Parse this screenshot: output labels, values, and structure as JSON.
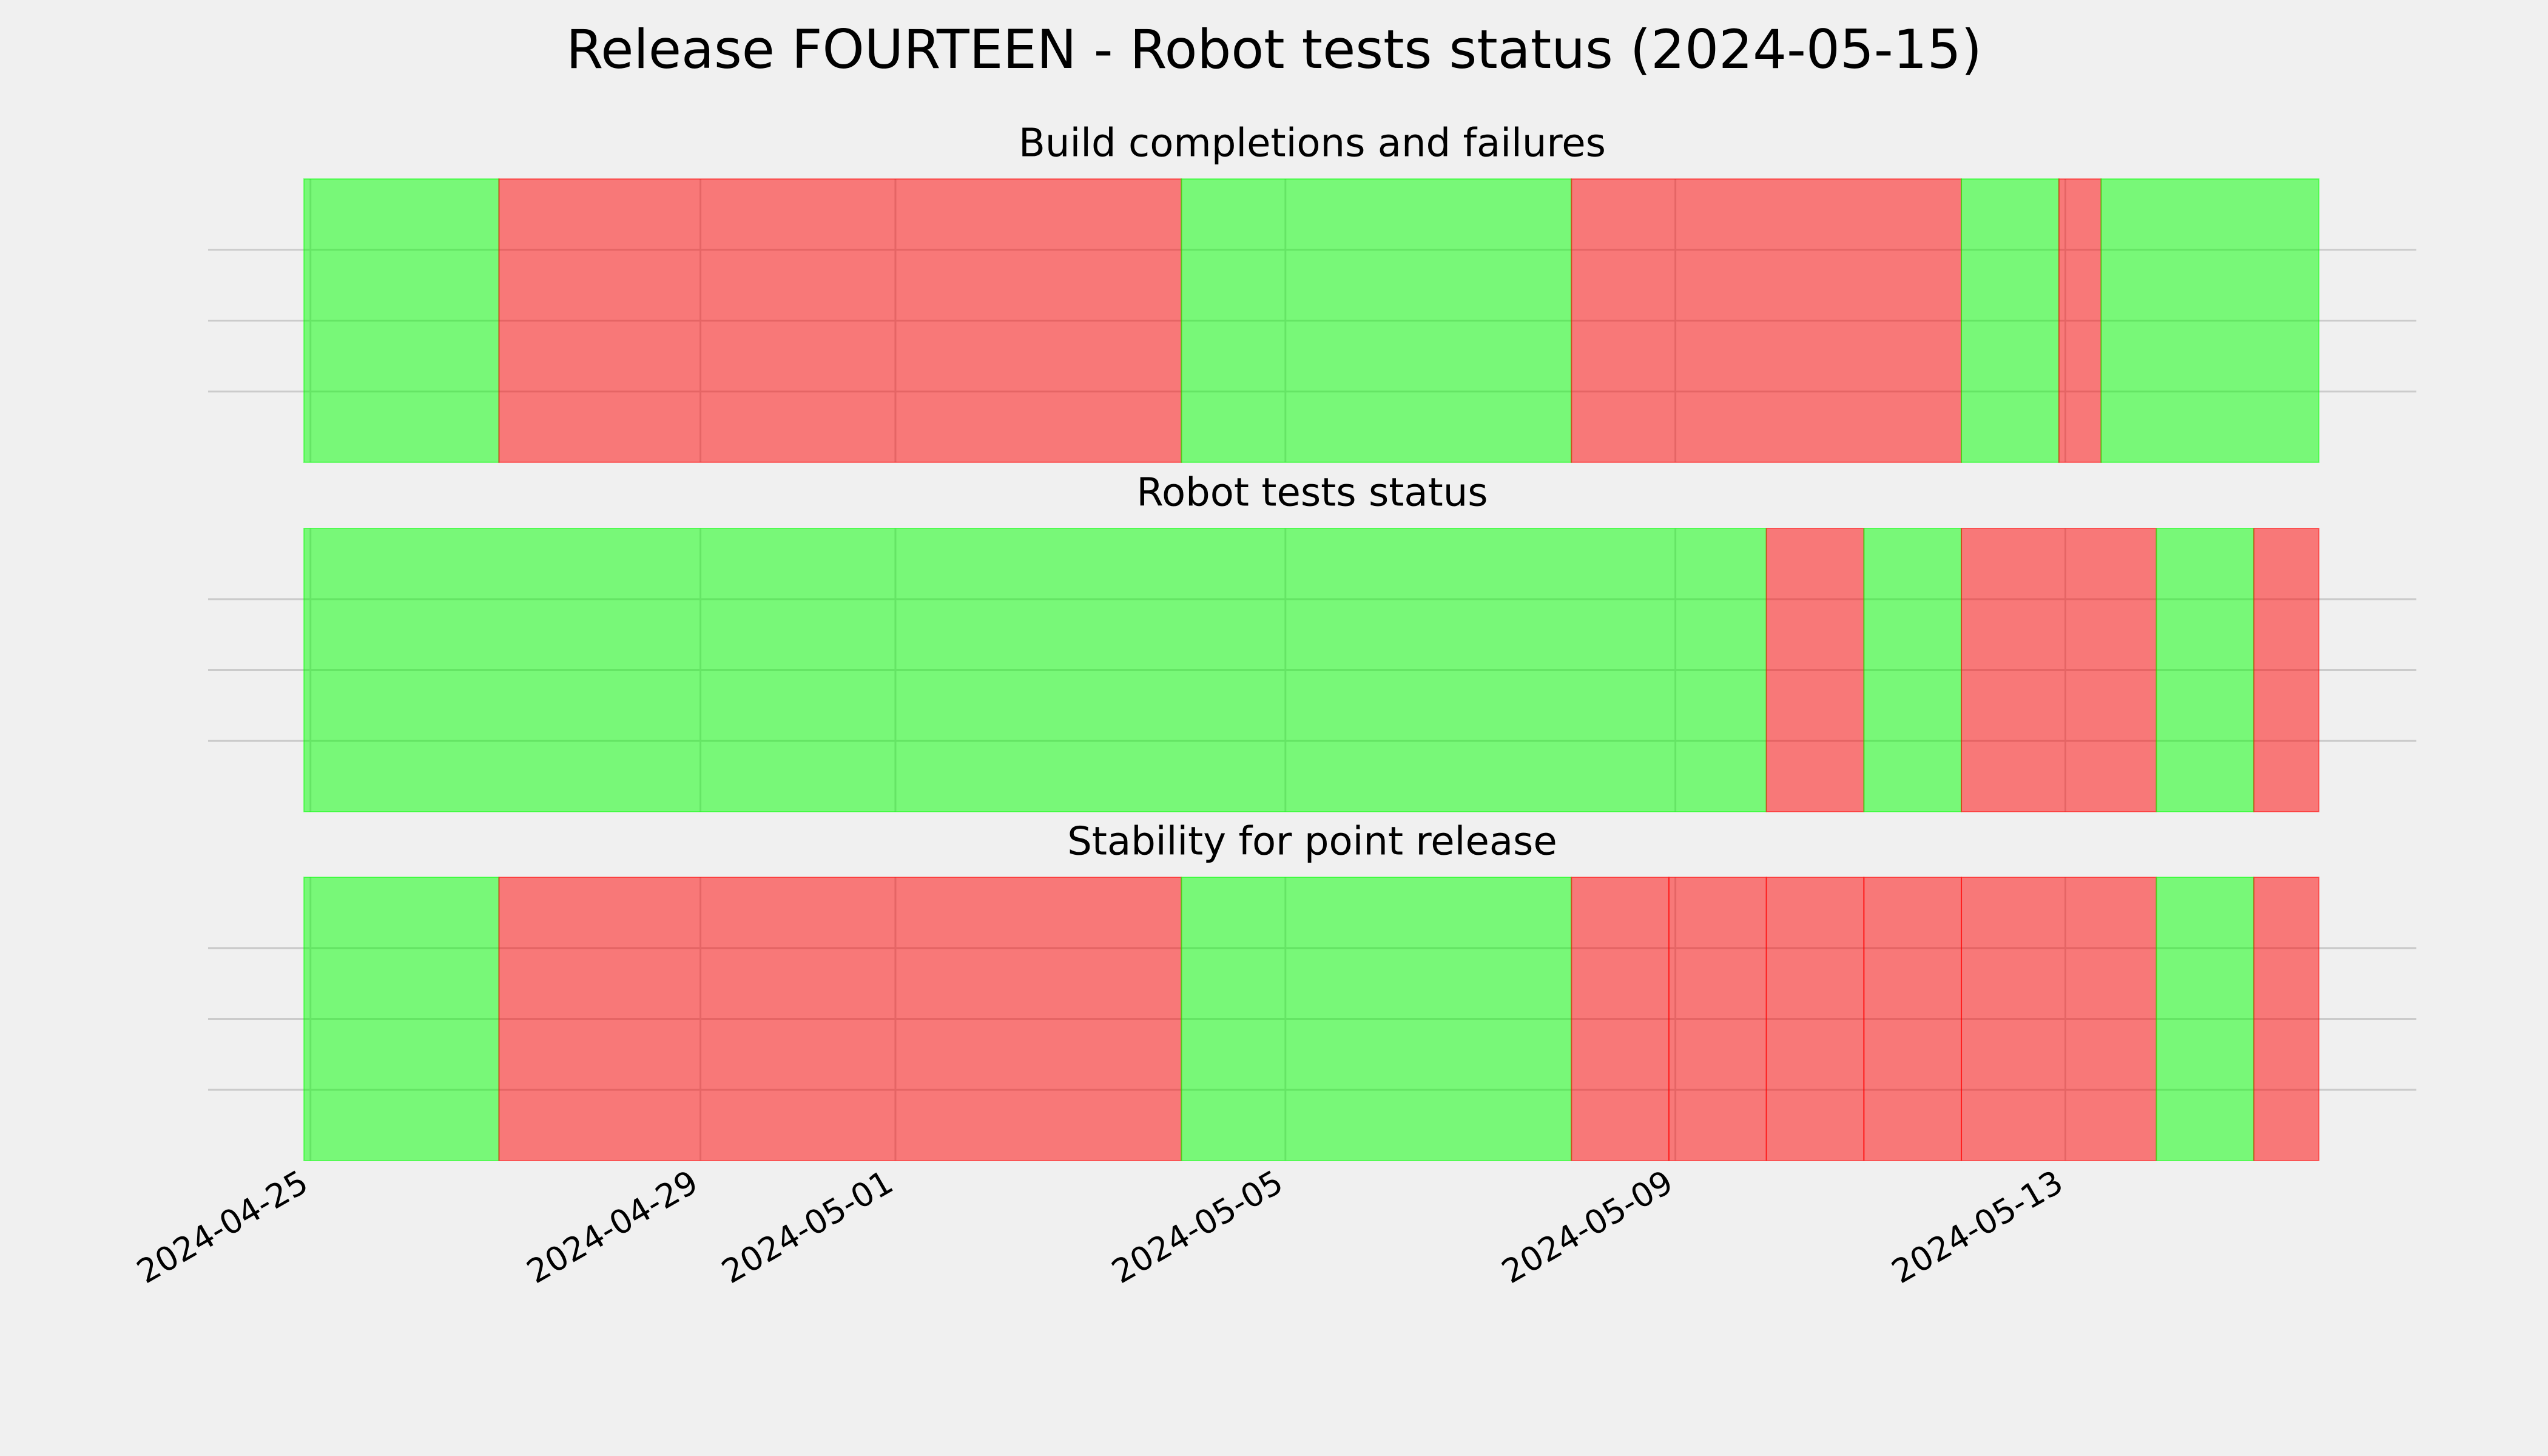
{
  "chart_data": {
    "type": "timeline",
    "title": "Release FOURTEEN - Robot tests status (2024-05-15)",
    "xlim": [
      "2024-04-23T22:48Z",
      "2024-05-16T14:24Z"
    ],
    "xticks": [
      "2024-04-25",
      "2024-04-29",
      "2024-05-01",
      "2024-05-05",
      "2024-05-09",
      "2024-05-13"
    ],
    "ylim": [
      0,
      1
    ],
    "yticks": [
      0.25,
      0.5,
      0.75
    ],
    "grid": true,
    "alpha": 0.5,
    "panels": [
      {
        "title": "Build completions and failures",
        "spans": [
          {
            "start": "2024-04-24T22:24Z",
            "end": "2024-04-26T22:24Z",
            "color": "#00ff00"
          },
          {
            "start": "2024-04-26T22:24Z",
            "end": "2024-05-03T22:24Z",
            "color": "#ff0000"
          },
          {
            "start": "2024-05-03T22:24Z",
            "end": "2024-05-07T22:24Z",
            "color": "#00ff00"
          },
          {
            "start": "2024-05-07T22:24Z",
            "end": "2024-05-11T22:24Z",
            "color": "#ff0000"
          },
          {
            "start": "2024-05-11T22:24Z",
            "end": "2024-05-12T22:24Z",
            "color": "#00ff00"
          },
          {
            "start": "2024-05-12T22:24Z",
            "end": "2024-05-13T08:48Z",
            "color": "#ff0000"
          },
          {
            "start": "2024-05-13T08:48Z",
            "end": "2024-05-15T14:24Z",
            "color": "#00ff00"
          }
        ]
      },
      {
        "title": "Robot tests status",
        "spans": [
          {
            "start": "2024-04-24T22:24Z",
            "end": "2024-05-09T22:24Z",
            "color": "#00ff00"
          },
          {
            "start": "2024-05-09T22:24Z",
            "end": "2024-05-10T22:24Z",
            "color": "#ff0000"
          },
          {
            "start": "2024-05-10T22:24Z",
            "end": "2024-05-11T22:24Z",
            "color": "#00ff00"
          },
          {
            "start": "2024-05-11T22:24Z",
            "end": "2024-05-13T22:24Z",
            "color": "#ff0000"
          },
          {
            "start": "2024-05-13T22:24Z",
            "end": "2024-05-14T22:24Z",
            "color": "#00ff00"
          },
          {
            "start": "2024-05-14T22:24Z",
            "end": "2024-05-15T14:24Z",
            "color": "#ff0000"
          }
        ]
      },
      {
        "title": "Stability for point release",
        "spans": [
          {
            "start": "2024-04-24T22:24Z",
            "end": "2024-04-26T22:24Z",
            "color": "#00ff00"
          },
          {
            "start": "2024-04-26T22:24Z",
            "end": "2024-05-03T22:24Z",
            "color": "#ff0000"
          },
          {
            "start": "2024-05-03T22:24Z",
            "end": "2024-05-07T22:24Z",
            "color": "#00ff00"
          },
          {
            "start": "2024-05-07T22:24Z",
            "end": "2024-05-08T22:24Z",
            "color": "#ff0000"
          },
          {
            "start": "2024-05-08T22:24Z",
            "end": "2024-05-09T22:24Z",
            "color": "#ff0000"
          },
          {
            "start": "2024-05-09T22:24Z",
            "end": "2024-05-10T22:24Z",
            "color": "#ff0000"
          },
          {
            "start": "2024-05-10T22:24Z",
            "end": "2024-05-11T22:24Z",
            "color": "#ff0000"
          },
          {
            "start": "2024-05-11T22:24Z",
            "end": "2024-05-13T22:24Z",
            "color": "#ff0000"
          },
          {
            "start": "2024-05-13T22:24Z",
            "end": "2024-05-14T22:24Z",
            "color": "#00ff00"
          },
          {
            "start": "2024-05-14T22:24Z",
            "end": "2024-05-15T14:24Z",
            "color": "#ff0000"
          }
        ]
      }
    ]
  }
}
